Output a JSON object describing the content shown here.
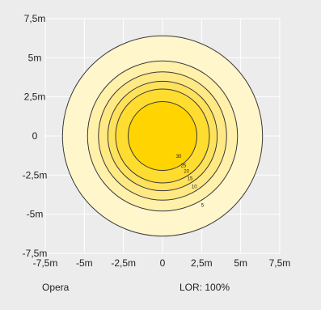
{
  "chart_data": {
    "type": "contour",
    "x_ticks": [
      "-7,5m",
      "-5m",
      "-2,5m",
      "0",
      "2,5m",
      "5m",
      "7,5m"
    ],
    "y_ticks": [
      "7,5m",
      "5m",
      "2,5m",
      "0",
      "-2,5m",
      "-5m",
      "-7,5m"
    ],
    "x_tick_values": [
      -7.5,
      -5,
      -2.5,
      0,
      2.5,
      5,
      7.5
    ],
    "y_tick_values": [
      7.5,
      5,
      2.5,
      0,
      -2.5,
      -5,
      -7.5
    ],
    "xlim": [
      -7.5,
      7.5
    ],
    "ylim": [
      -7.5,
      7.5
    ],
    "grid": true,
    "contours": [
      {
        "label": "5",
        "radius": 6.4,
        "fill": "#fff6cc"
      },
      {
        "label": "10",
        "radius": 4.8,
        "fill": "#fff0aa"
      },
      {
        "label": "15",
        "radius": 4.1,
        "fill": "#ffe985"
      },
      {
        "label": "20",
        "radius": 3.5,
        "fill": "#ffe25c"
      },
      {
        "label": "25",
        "radius": 3.0,
        "fill": "#ffdc30"
      },
      {
        "label": "30",
        "radius": 2.2,
        "fill": "#ffd400"
      }
    ]
  },
  "footer": {
    "name": "Opera",
    "lor": "LOR: 100%"
  }
}
